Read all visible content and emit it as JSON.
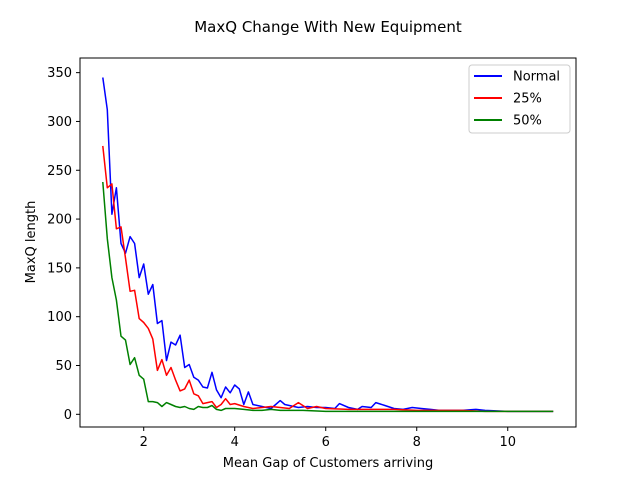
{
  "chart_data": {
    "type": "line",
    "title": "MaxQ Change With New Equipment",
    "xlabel": "Mean Gap of Customers arriving",
    "ylabel": "MaxQ length",
    "xlim": [
      0.6,
      11.5
    ],
    "ylim": [
      -13,
      365
    ],
    "xticks": [
      2,
      4,
      6,
      8,
      10
    ],
    "yticks": [
      0,
      50,
      100,
      150,
      200,
      250,
      300,
      350
    ],
    "grid": false,
    "legend_position": "top-right",
    "series": [
      {
        "name": "Normal",
        "color": "#0000ff",
        "x": [
          1.1,
          1.2,
          1.3,
          1.4,
          1.5,
          1.6,
          1.7,
          1.8,
          1.9,
          2.0,
          2.1,
          2.2,
          2.3,
          2.4,
          2.5,
          2.6,
          2.7,
          2.8,
          2.9,
          3.0,
          3.1,
          3.2,
          3.3,
          3.4,
          3.5,
          3.6,
          3.7,
          3.8,
          3.9,
          4.0,
          4.1,
          4.2,
          4.3,
          4.4,
          4.6,
          4.8,
          5.0,
          5.1,
          5.2,
          5.4,
          5.6,
          5.8,
          6.0,
          6.2,
          6.3,
          6.5,
          6.7,
          6.8,
          7.0,
          7.1,
          7.3,
          7.5,
          7.7,
          7.9,
          8.1,
          8.3,
          8.5,
          9.0,
          9.3,
          9.5,
          10.0,
          10.5,
          11.0
        ],
        "values": [
          345,
          312,
          205,
          232,
          175,
          165,
          182,
          175,
          140,
          154,
          123,
          133,
          93,
          96,
          55,
          74,
          71,
          81,
          48,
          51,
          38,
          35,
          28,
          27,
          43,
          25,
          17,
          28,
          22,
          30,
          26,
          10,
          23,
          10,
          8,
          6,
          14,
          10,
          9,
          7,
          8,
          7,
          7,
          6,
          11,
          7,
          5,
          8,
          7,
          12,
          9,
          6,
          5,
          7,
          6,
          5,
          4,
          4,
          5,
          4,
          3,
          3,
          3
        ]
      },
      {
        "name": "25%",
        "color": "#ff0000",
        "x": [
          1.1,
          1.2,
          1.3,
          1.4,
          1.5,
          1.6,
          1.7,
          1.8,
          1.9,
          2.0,
          2.1,
          2.2,
          2.3,
          2.4,
          2.5,
          2.6,
          2.7,
          2.8,
          2.9,
          3.0,
          3.1,
          3.2,
          3.3,
          3.4,
          3.5,
          3.6,
          3.7,
          3.8,
          3.9,
          4.0,
          4.2,
          4.4,
          4.6,
          4.8,
          5.0,
          5.2,
          5.4,
          5.6,
          5.8,
          6.0,
          6.5,
          7.0,
          7.5,
          8.0,
          8.5,
          9.0,
          9.5,
          10.0,
          10.5,
          11.0
        ],
        "values": [
          275,
          232,
          236,
          190,
          192,
          160,
          126,
          127,
          98,
          94,
          88,
          77,
          45,
          56,
          40,
          48,
          35,
          24,
          26,
          35,
          21,
          19,
          11,
          12,
          13,
          7,
          10,
          16,
          10,
          11,
          8,
          6,
          7,
          8,
          7,
          6,
          12,
          6,
          8,
          6,
          5,
          5,
          5,
          4,
          4,
          4,
          3,
          3,
          3,
          3
        ]
      },
      {
        "name": "50%",
        "color": "#008000",
        "x": [
          1.1,
          1.2,
          1.3,
          1.4,
          1.5,
          1.6,
          1.7,
          1.8,
          1.9,
          2.0,
          2.1,
          2.2,
          2.3,
          2.4,
          2.5,
          2.6,
          2.7,
          2.8,
          2.9,
          3.0,
          3.1,
          3.2,
          3.3,
          3.4,
          3.5,
          3.6,
          3.7,
          3.8,
          4.0,
          4.2,
          4.4,
          4.6,
          4.8,
          5.0,
          5.5,
          6.0,
          6.5,
          7.0,
          7.5,
          8.0,
          8.5,
          9.0,
          9.5,
          10.0,
          10.5,
          11.0
        ],
        "values": [
          238,
          180,
          140,
          117,
          80,
          76,
          51,
          58,
          40,
          36,
          13,
          13,
          12,
          8,
          12,
          10,
          8,
          7,
          8,
          6,
          5,
          8,
          7,
          7,
          9,
          5,
          4,
          6,
          6,
          5,
          4,
          4,
          5,
          4,
          4,
          3,
          3,
          3,
          3,
          3,
          3,
          3,
          3,
          3,
          3,
          3
        ]
      }
    ]
  }
}
